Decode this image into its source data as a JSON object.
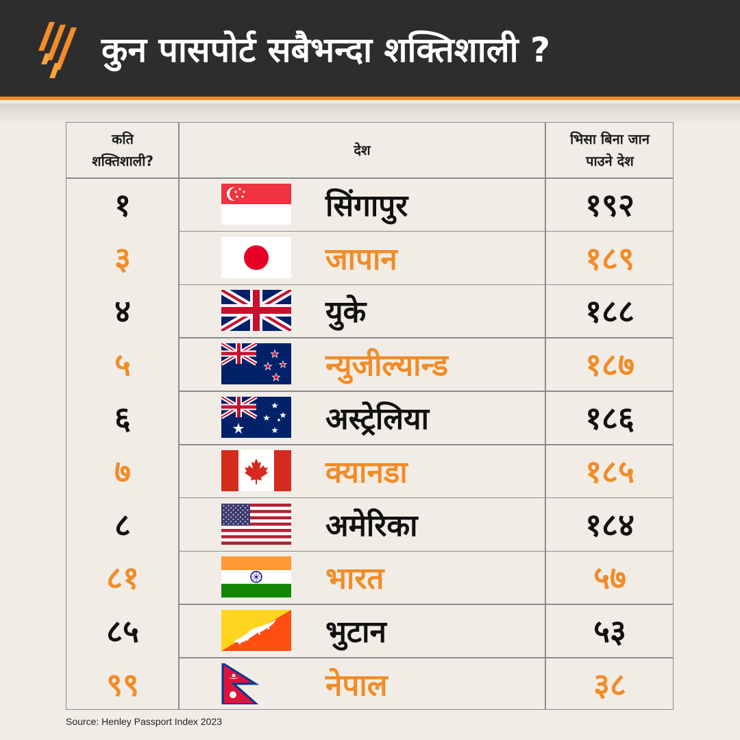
{
  "header": {
    "title": "कुन पासपोर्ट सबैभन्दा शक्तिशाली ?",
    "logo_icon": "sbs-logo-icon",
    "background": "#2d2d2d",
    "accent": "#f28c28"
  },
  "table": {
    "columns": [
      "कति\nशक्तिशाली?",
      "देश",
      "भिसा बिना जान\nपाउने देश"
    ],
    "row_colors": [
      "#111111",
      "#f28c28"
    ],
    "rows": [
      {
        "rank": "१",
        "country": "सिंगापुर",
        "visa": "१९२",
        "flag": "singapore-flag-icon"
      },
      {
        "rank": "३",
        "country": "जापान",
        "visa": "१८९",
        "flag": "japan-flag-icon"
      },
      {
        "rank": "४",
        "country": "युके",
        "visa": "१८८",
        "flag": "uk-flag-icon"
      },
      {
        "rank": "५",
        "country": "न्युजील्यान्ड",
        "visa": "१८७",
        "flag": "new-zealand-flag-icon"
      },
      {
        "rank": "६",
        "country": "अस्ट्रेलिया",
        "visa": "१८६",
        "flag": "australia-flag-icon"
      },
      {
        "rank": "७",
        "country": "क्यानडा",
        "visa": "१८५",
        "flag": "canada-flag-icon"
      },
      {
        "rank": "८",
        "country": "अमेरिका",
        "visa": "१८४",
        "flag": "usa-flag-icon"
      },
      {
        "rank": "८१",
        "country": "भारत",
        "visa": "५७",
        "flag": "india-flag-icon"
      },
      {
        "rank": "८५",
        "country": "भुटान",
        "visa": "५३",
        "flag": "bhutan-flag-icon"
      },
      {
        "rank": "९९",
        "country": "नेपाल",
        "visa": "३८",
        "flag": "nepal-flag-icon"
      }
    ]
  },
  "source": "Source: Henley Passport Index 2023"
}
